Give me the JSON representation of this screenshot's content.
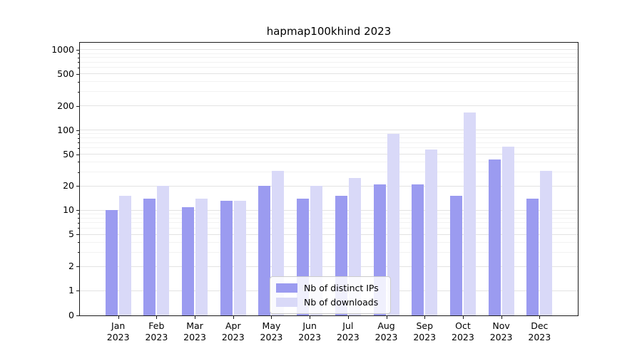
{
  "title": "hapmap100khind 2023",
  "chart_data": {
    "type": "bar",
    "title": "hapmap100khind 2023",
    "categories": [
      "Jan 2023",
      "Feb 2023",
      "Mar 2023",
      "Apr 2023",
      "May 2023",
      "Jun 2023",
      "Jul 2023",
      "Aug 2023",
      "Sep 2023",
      "Oct 2023",
      "Nov 2023",
      "Dec 2023"
    ],
    "series": [
      {
        "name": "Nb of distinct IPs",
        "color": "#9b9bf0",
        "values": [
          10,
          14,
          11,
          13,
          20,
          14,
          15,
          21,
          21,
          15,
          43,
          14
        ]
      },
      {
        "name": "Nb of downloads",
        "color": "#d9d9f8",
        "values": [
          15,
          20,
          14,
          13,
          31,
          20,
          25,
          90,
          57,
          165,
          62,
          31
        ]
      }
    ],
    "xlabel": "",
    "ylabel": "",
    "yscale": "symlog",
    "yticks": [
      0,
      1,
      2,
      5,
      10,
      20,
      50,
      100,
      200,
      500,
      1000
    ],
    "yticks_minor": [
      3,
      4,
      6,
      7,
      8,
      9,
      30,
      40,
      60,
      70,
      80,
      90,
      300,
      400,
      600,
      700,
      800,
      900
    ],
    "ylim": [
      0,
      1200
    ],
    "grid": true,
    "legend_position": "lower center"
  }
}
